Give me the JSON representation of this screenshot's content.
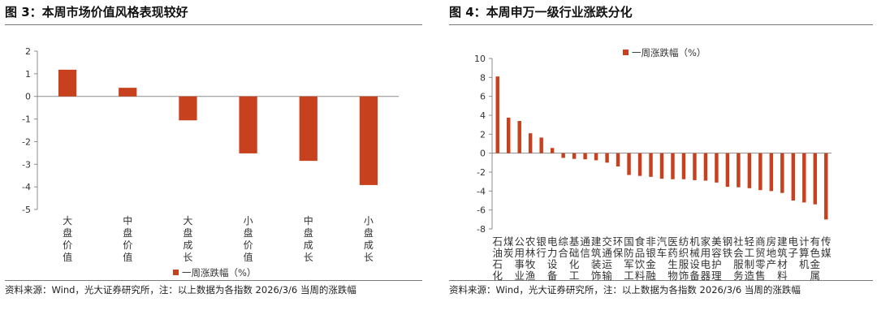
{
  "colors": {
    "bar": "#C8411E",
    "axis": "#8c8c8c",
    "rule": "#7a7a7a"
  },
  "left": {
    "title": "图 3：本周市场价值风格表现较好",
    "source": "资料来源：Wind，光大证券研究所，注：以上数据为各指数 2026/3/6 当周的涨跌幅",
    "chart_data": {
      "type": "bar",
      "title": "",
      "xlabel": "",
      "ylabel": "",
      "legend": "一周涨跌幅（%）",
      "legend_position": "bottom",
      "grid": false,
      "ylim": [
        -5,
        2
      ],
      "yticks": [
        2,
        1,
        0,
        -1,
        -2,
        -3,
        -4,
        -5
      ],
      "categories": [
        "大盘价值",
        "中盘价值",
        "大盘成长",
        "小盘价值",
        "中盘成长",
        "小盘成长"
      ],
      "values": [
        1.18,
        0.38,
        -1.06,
        -2.52,
        -2.85,
        -3.92
      ]
    }
  },
  "right": {
    "title": "图 4：本周申万一级行业涨跌分化",
    "source": "资料来源：Wind，光大证券研究所，注：以上数据为各指数 2026/3/6 当周的涨跌幅",
    "chart_data": {
      "type": "bar",
      "title": "",
      "xlabel": "",
      "ylabel": "",
      "legend": "一周涨跌幅（%）",
      "legend_position": "top",
      "grid": false,
      "ylim": [
        -8,
        10
      ],
      "yticks": [
        10,
        8,
        6,
        4,
        2,
        0,
        -2,
        -4,
        -6,
        -8
      ],
      "categories": [
        "石油石化",
        "煤炭",
        "公用事业",
        "农林牧渔",
        "银行",
        "电力设备",
        "综合",
        "基础化工",
        "通信",
        "建筑装饰",
        "交通运输",
        "环保",
        "国防军工",
        "食品饮料",
        "非银金融",
        "汽车",
        "医药生物",
        "纺织服饰",
        "机械设备",
        "家用电器",
        "美容护理",
        "钢铁",
        "社会服务",
        "轻工制造",
        "商贸零售",
        "房地产",
        "建筑材料",
        "电子",
        "计算机",
        "有色金属",
        "传媒"
      ],
      "values": [
        8.1,
        3.75,
        3.4,
        2.1,
        1.65,
        0.55,
        -0.5,
        -0.6,
        -0.65,
        -0.75,
        -1.0,
        -1.4,
        -2.3,
        -2.4,
        -2.5,
        -2.7,
        -2.75,
        -2.75,
        -2.85,
        -2.9,
        -3.1,
        -3.55,
        -3.6,
        -3.7,
        -3.9,
        -4.0,
        -4.2,
        -5.0,
        -5.2,
        -5.4,
        -7.0
      ]
    }
  }
}
